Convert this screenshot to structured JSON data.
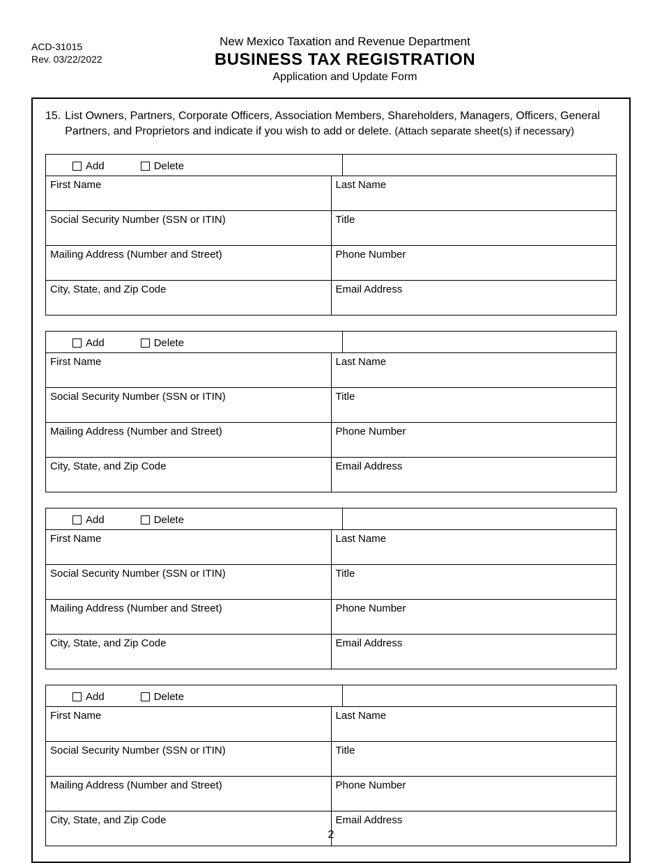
{
  "header": {
    "form_code": "ACD-31015",
    "revision": "Rev. 03/22/2022",
    "department": "New Mexico Taxation and Revenue Department",
    "title": "BUSINESS TAX REGISTRATION",
    "subtitle": "Application and Update Form"
  },
  "instruction": {
    "number": "15.",
    "text_main": "List Owners, Partners, Corporate Officers, Association Members, Shareholders, Managers, Officers, General Partners, and Proprietors and indicate if you wish to add or delete.",
    "text_attach": "(Attach separate sheet(s) if necessary)"
  },
  "labels": {
    "add": "Add",
    "delete": "Delete",
    "first_name": "First Name",
    "last_name": "Last Name",
    "ssn": "Social Security Number (SSN or ITIN)",
    "title": "Title",
    "mailing": "Mailing Address (Number and Street)",
    "phone": "Phone Number",
    "city": "City, State, and Zip Code",
    "email": "Email Address"
  },
  "page_number": "2",
  "person_block_count": 4
}
